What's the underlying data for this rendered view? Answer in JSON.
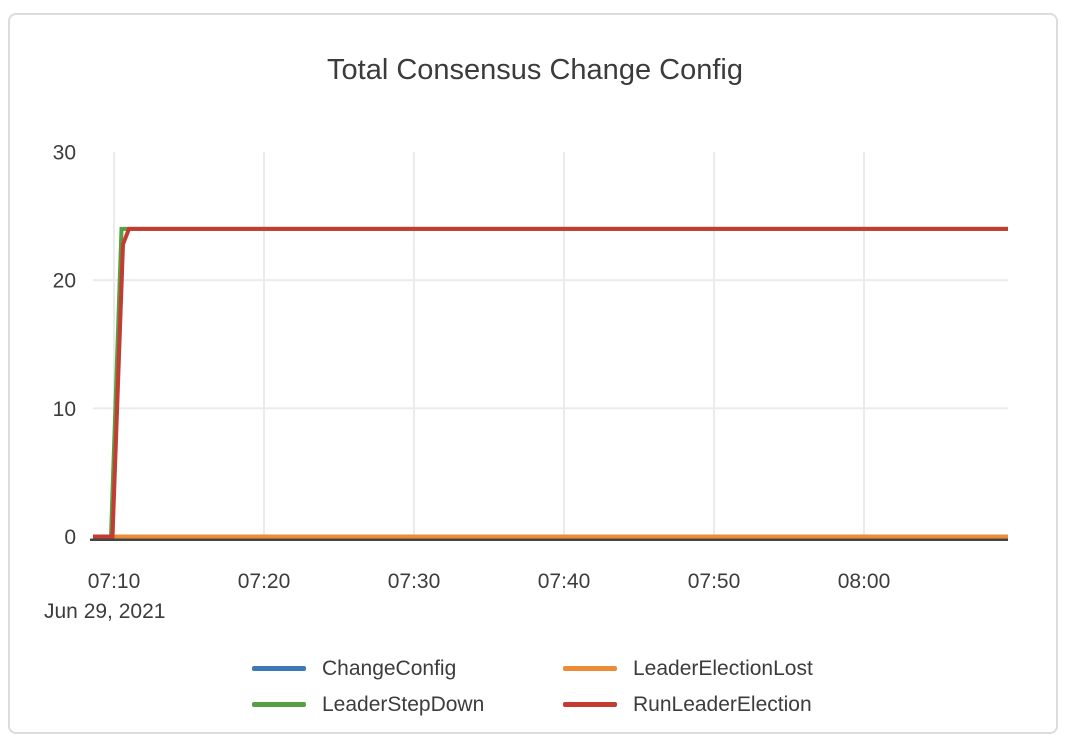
{
  "card": {
    "border_color": "#dcdcdc",
    "background": "#ffffff"
  },
  "title": "Total Consensus Change Config",
  "date_label": "Jun 29, 2021",
  "legend": {
    "position": "bottom",
    "items": [
      {
        "label": "ChangeConfig",
        "color": "#3d7ab3"
      },
      {
        "label": "LeaderElectionLost",
        "color": "#ed8c37"
      },
      {
        "label": "LeaderStepDown",
        "color": "#55a044"
      },
      {
        "label": "RunLeaderElection",
        "color": "#c43b32"
      }
    ]
  },
  "chart_data": {
    "type": "line",
    "title": "Total Consensus Change Config",
    "x_axis": {
      "date_label": "Jun 29, 2021",
      "x_unit": "minutes_after_07:00",
      "ticks": [
        {
          "label": "07:10",
          "minutes": 10
        },
        {
          "label": "07:20",
          "minutes": 20
        },
        {
          "label": "07:30",
          "minutes": 30
        },
        {
          "label": "07:40",
          "minutes": 40
        },
        {
          "label": "07:50",
          "minutes": 50
        },
        {
          "label": "08:00",
          "minutes": 60
        }
      ],
      "domain_minutes": [
        8.6,
        69.6
      ]
    },
    "y_axis": {
      "ticks": [
        {
          "label": "0",
          "value": 0
        },
        {
          "label": "10",
          "value": 10
        },
        {
          "label": "20",
          "value": 20
        },
        {
          "label": "30",
          "value": 30
        }
      ],
      "range": [
        0,
        30
      ],
      "gridline_values": [
        10,
        20
      ]
    },
    "grid": {
      "vertical": true,
      "horizontal": true,
      "color": "#ebebeb"
    },
    "axis_line_color": "#444444",
    "legend_position": "bottom",
    "series": [
      {
        "name": "ChangeConfig",
        "color": "#3d7ab3",
        "points": [
          [
            8.6,
            0
          ],
          [
            69.6,
            0
          ]
        ],
        "note": "constant 0, hidden beneath LeaderElectionLost"
      },
      {
        "name": "LeaderElectionLost",
        "color": "#ed8c37",
        "points": [
          [
            8.6,
            0
          ],
          [
            69.6,
            0
          ]
        ]
      },
      {
        "name": "LeaderStepDown",
        "color": "#55a044",
        "points": [
          [
            8.6,
            0
          ],
          [
            9.8,
            0
          ],
          [
            10.5,
            24
          ],
          [
            69.6,
            24
          ]
        ]
      },
      {
        "name": "RunLeaderElection",
        "color": "#c43b32",
        "points": [
          [
            8.6,
            0
          ],
          [
            9.9,
            0
          ],
          [
            10.6,
            22.8
          ],
          [
            11.0,
            24
          ],
          [
            69.6,
            24
          ]
        ]
      }
    ]
  }
}
